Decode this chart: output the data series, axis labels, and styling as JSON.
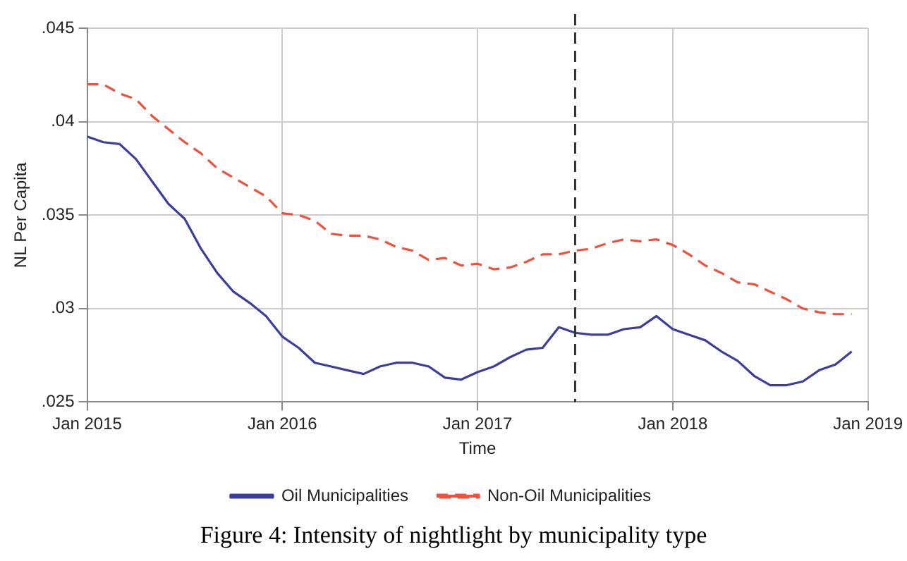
{
  "chart_data": {
    "type": "line",
    "xlabel": "Time",
    "ylabel": "NL Per Capita",
    "x": [
      "2015-01",
      "2015-02",
      "2015-03",
      "2015-04",
      "2015-05",
      "2015-06",
      "2015-07",
      "2015-08",
      "2015-09",
      "2015-10",
      "2015-11",
      "2015-12",
      "2016-01",
      "2016-02",
      "2016-03",
      "2016-04",
      "2016-05",
      "2016-06",
      "2016-07",
      "2016-08",
      "2016-09",
      "2016-10",
      "2016-11",
      "2016-12",
      "2017-01",
      "2017-02",
      "2017-03",
      "2017-04",
      "2017-05",
      "2017-06",
      "2017-07",
      "2017-08",
      "2017-09",
      "2017-10",
      "2017-11",
      "2017-12",
      "2018-01",
      "2018-02",
      "2018-03",
      "2018-04",
      "2018-05",
      "2018-06",
      "2018-07",
      "2018-08",
      "2018-09",
      "2018-10",
      "2018-11",
      "2018-12"
    ],
    "series": [
      {
        "name": "Oil Municipalities",
        "color": "#3d3d9b",
        "line_style": "solid",
        "values": [
          0.0392,
          0.0389,
          0.0388,
          0.038,
          0.0368,
          0.0356,
          0.0348,
          0.0332,
          0.0319,
          0.0309,
          0.0303,
          0.0296,
          0.0285,
          0.0279,
          0.0271,
          0.0269,
          0.0267,
          0.0265,
          0.0269,
          0.0271,
          0.0271,
          0.0269,
          0.0263,
          0.0262,
          0.0266,
          0.0269,
          0.0274,
          0.0278,
          0.0279,
          0.029,
          0.0287,
          0.0286,
          0.0286,
          0.0289,
          0.029,
          0.0296,
          0.0289,
          0.0286,
          0.0283,
          0.0277,
          0.0272,
          0.0264,
          0.0259,
          0.0259,
          0.0261,
          0.0267,
          0.027,
          0.0277
        ]
      },
      {
        "name": "Non-Oil Municipalities",
        "color": "#f0503c",
        "line_style": "dashed",
        "values": [
          0.042,
          0.042,
          0.0415,
          0.0412,
          0.0403,
          0.0396,
          0.0389,
          0.0383,
          0.0375,
          0.037,
          0.0365,
          0.036,
          0.0351,
          0.035,
          0.0347,
          0.034,
          0.0339,
          0.0339,
          0.0337,
          0.0333,
          0.0331,
          0.0326,
          0.0327,
          0.0323,
          0.0324,
          0.0321,
          0.0322,
          0.0325,
          0.0329,
          0.0329,
          0.0331,
          0.0332,
          0.0335,
          0.0337,
          0.0336,
          0.0337,
          0.0334,
          0.0329,
          0.0323,
          0.0319,
          0.0314,
          0.0313,
          0.0309,
          0.0305,
          0.03,
          0.0298,
          0.0297,
          0.0297
        ]
      }
    ],
    "xlim": [
      "2015-01",
      "2019-01"
    ],
    "xticks": [
      {
        "value": "2015-01",
        "label": "Jan 2015"
      },
      {
        "value": "2016-01",
        "label": "Jan 2016"
      },
      {
        "value": "2017-01",
        "label": "Jan 2017"
      },
      {
        "value": "2018-01",
        "label": "Jan 2018"
      },
      {
        "value": "2019-01",
        "label": "Jan 2019"
      }
    ],
    "ylim": [
      0.025,
      0.045
    ],
    "yticks": [
      {
        "value": 0.025,
        "label": ".025"
      },
      {
        "value": 0.03,
        "label": ".03"
      },
      {
        "value": 0.035,
        "label": ".035"
      },
      {
        "value": 0.04,
        "label": ".04"
      },
      {
        "value": 0.045,
        "label": ".045"
      }
    ],
    "ref_lines": [
      {
        "axis": "x",
        "value": "2017-07",
        "color": "#333333",
        "line_style": "dashed"
      }
    ],
    "grid": true,
    "legend": "bottom",
    "marker": "none",
    "annotations": [
      "Figure 4: Intensity of nightlight by municipality type"
    ]
  }
}
